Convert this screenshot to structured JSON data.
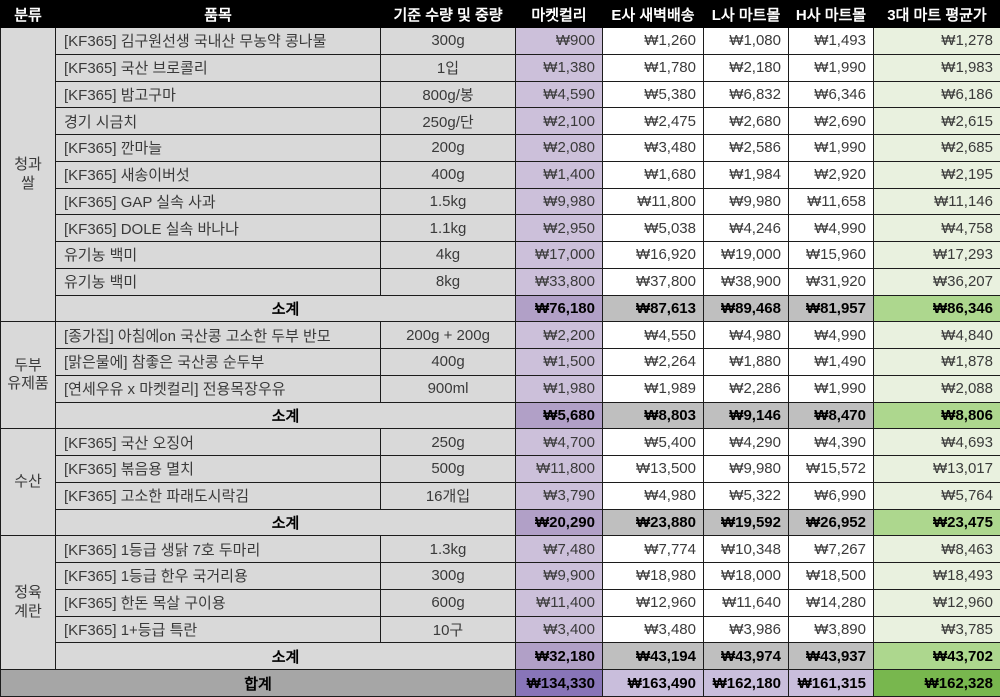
{
  "chart_data": {
    "type": "table",
    "columns": [
      "분류",
      "품목",
      "기준 수량 및 중량",
      "마켓컬리",
      "E사 새벽배송",
      "L사 마트몰",
      "H사 마트몰",
      "3대 마트 평균가"
    ],
    "sections": [
      {
        "category": "청과\n쌀",
        "items": [
          {
            "name": "[KF365] 김구원선생 국내산 무농약 콩나물",
            "qty": "300g",
            "prices": [
              "₩900",
              "₩1,260",
              "₩1,080",
              "₩1,493",
              "₩1,278"
            ]
          },
          {
            "name": "[KF365] 국산 브로콜리",
            "qty": "1입",
            "prices": [
              "₩1,380",
              "₩1,780",
              "₩2,180",
              "₩1,990",
              "₩1,983"
            ]
          },
          {
            "name": "[KF365] 밤고구마",
            "qty": "800g/봉",
            "prices": [
              "₩4,590",
              "₩5,380",
              "₩6,832",
              "₩6,346",
              "₩6,186"
            ]
          },
          {
            "name": "경기 시금치",
            "qty": "250g/단",
            "prices": [
              "₩2,100",
              "₩2,475",
              "₩2,680",
              "₩2,690",
              "₩2,615"
            ]
          },
          {
            "name": "[KF365] 깐마늘",
            "qty": "200g",
            "prices": [
              "₩2,080",
              "₩3,480",
              "₩2,586",
              "₩1,990",
              "₩2,685"
            ]
          },
          {
            "name": "[KF365] 새송이버섯",
            "qty": "400g",
            "prices": [
              "₩1,400",
              "₩1,680",
              "₩1,984",
              "₩2,920",
              "₩2,195"
            ]
          },
          {
            "name": "[KF365] GAP 실속 사과",
            "qty": "1.5kg",
            "prices": [
              "₩9,980",
              "₩11,800",
              "₩9,980",
              "₩11,658",
              "₩11,146"
            ]
          },
          {
            "name": "[KF365] DOLE 실속 바나나",
            "qty": "1.1kg",
            "prices": [
              "₩2,950",
              "₩5,038",
              "₩4,246",
              "₩4,990",
              "₩4,758"
            ]
          },
          {
            "name": "유기농 백미",
            "qty": "4kg",
            "prices": [
              "₩17,000",
              "₩16,920",
              "₩19,000",
              "₩15,960",
              "₩17,293"
            ]
          },
          {
            "name": "유기농 백미",
            "qty": "8kg",
            "prices": [
              "₩33,800",
              "₩37,800",
              "₩38,900",
              "₩31,920",
              "₩36,207"
            ]
          }
        ],
        "subtotal_label": "소계",
        "subtotal_prices": [
          "₩76,180",
          "₩87,613",
          "₩89,468",
          "₩81,957",
          "₩86,346"
        ]
      },
      {
        "category": "두부\n유제품",
        "items": [
          {
            "name": "[종가집] 아침에on 국산콩 고소한 두부 반모",
            "qty": "200g + 200g",
            "prices": [
              "₩2,200",
              "₩4,550",
              "₩4,980",
              "₩4,990",
              "₩4,840"
            ]
          },
          {
            "name": "[맑은물에] 참좋은 국산콩 순두부",
            "qty": "400g",
            "prices": [
              "₩1,500",
              "₩2,264",
              "₩1,880",
              "₩1,490",
              "₩1,878"
            ]
          },
          {
            "name": "[연세우유 x 마켓컬리] 전용목장우유",
            "qty": "900ml",
            "prices": [
              "₩1,980",
              "₩1,989",
              "₩2,286",
              "₩1,990",
              "₩2,088"
            ]
          }
        ],
        "subtotal_label": "소계",
        "subtotal_prices": [
          "₩5,680",
          "₩8,803",
          "₩9,146",
          "₩8,470",
          "₩8,806"
        ]
      },
      {
        "category": "수산",
        "items": [
          {
            "name": "[KF365] 국산 오징어",
            "qty": "250g",
            "prices": [
              "₩4,700",
              "₩5,400",
              "₩4,290",
              "₩4,390",
              "₩4,693"
            ]
          },
          {
            "name": "[KF365] 볶음용 멸치",
            "qty": "500g",
            "prices": [
              "₩11,800",
              "₩13,500",
              "₩9,980",
              "₩15,572",
              "₩13,017"
            ]
          },
          {
            "name": "[KF365] 고소한 파래도시락김",
            "qty": "16개입",
            "prices": [
              "₩3,790",
              "₩4,980",
              "₩5,322",
              "₩6,990",
              "₩5,764"
            ]
          }
        ],
        "subtotal_label": "소계",
        "subtotal_prices": [
          "₩20,290",
          "₩23,880",
          "₩19,592",
          "₩26,952",
          "₩23,475"
        ]
      },
      {
        "category": "정육\n계란",
        "items": [
          {
            "name": "[KF365] 1등급 생닭 7호 두마리",
            "qty": "1.3kg",
            "prices": [
              "₩7,480",
              "₩7,774",
              "₩10,348",
              "₩7,267",
              "₩8,463"
            ]
          },
          {
            "name": "[KF365] 1등급 한우 국거리용",
            "qty": "300g",
            "prices": [
              "₩9,900",
              "₩18,980",
              "₩18,000",
              "₩18,500",
              "₩18,493"
            ]
          },
          {
            "name": "[KF365] 한돈 목살 구이용",
            "qty": "600g",
            "prices": [
              "₩11,400",
              "₩12,960",
              "₩11,640",
              "₩14,280",
              "₩12,960"
            ]
          },
          {
            "name": "[KF365] 1+등급 특란",
            "qty": "10구",
            "prices": [
              "₩3,400",
              "₩3,480",
              "₩3,986",
              "₩3,890",
              "₩3,785"
            ]
          }
        ],
        "subtotal_label": "소계",
        "subtotal_prices": [
          "₩32,180",
          "₩43,194",
          "₩43,974",
          "₩43,937",
          "₩43,702"
        ]
      }
    ],
    "total_label": "합계",
    "total_prices": [
      "₩134,330",
      "₩163,490",
      "₩162,180",
      "₩161,315",
      "₩162,328"
    ]
  },
  "colors": {
    "header_bg": "#000000",
    "header_text": "#ffffff",
    "cell_gray": "#d9d9d9",
    "kurly_light": "#ccc0da",
    "kurly_mid": "#b1a0c7",
    "kurly_dark": "#8875b8",
    "avg_light": "#e9f1df",
    "avg_mid": "#add78e",
    "avg_dark": "#78b74e",
    "subtotal_gray": "#bfbfbf",
    "total_gray": "#a6a6a6"
  }
}
